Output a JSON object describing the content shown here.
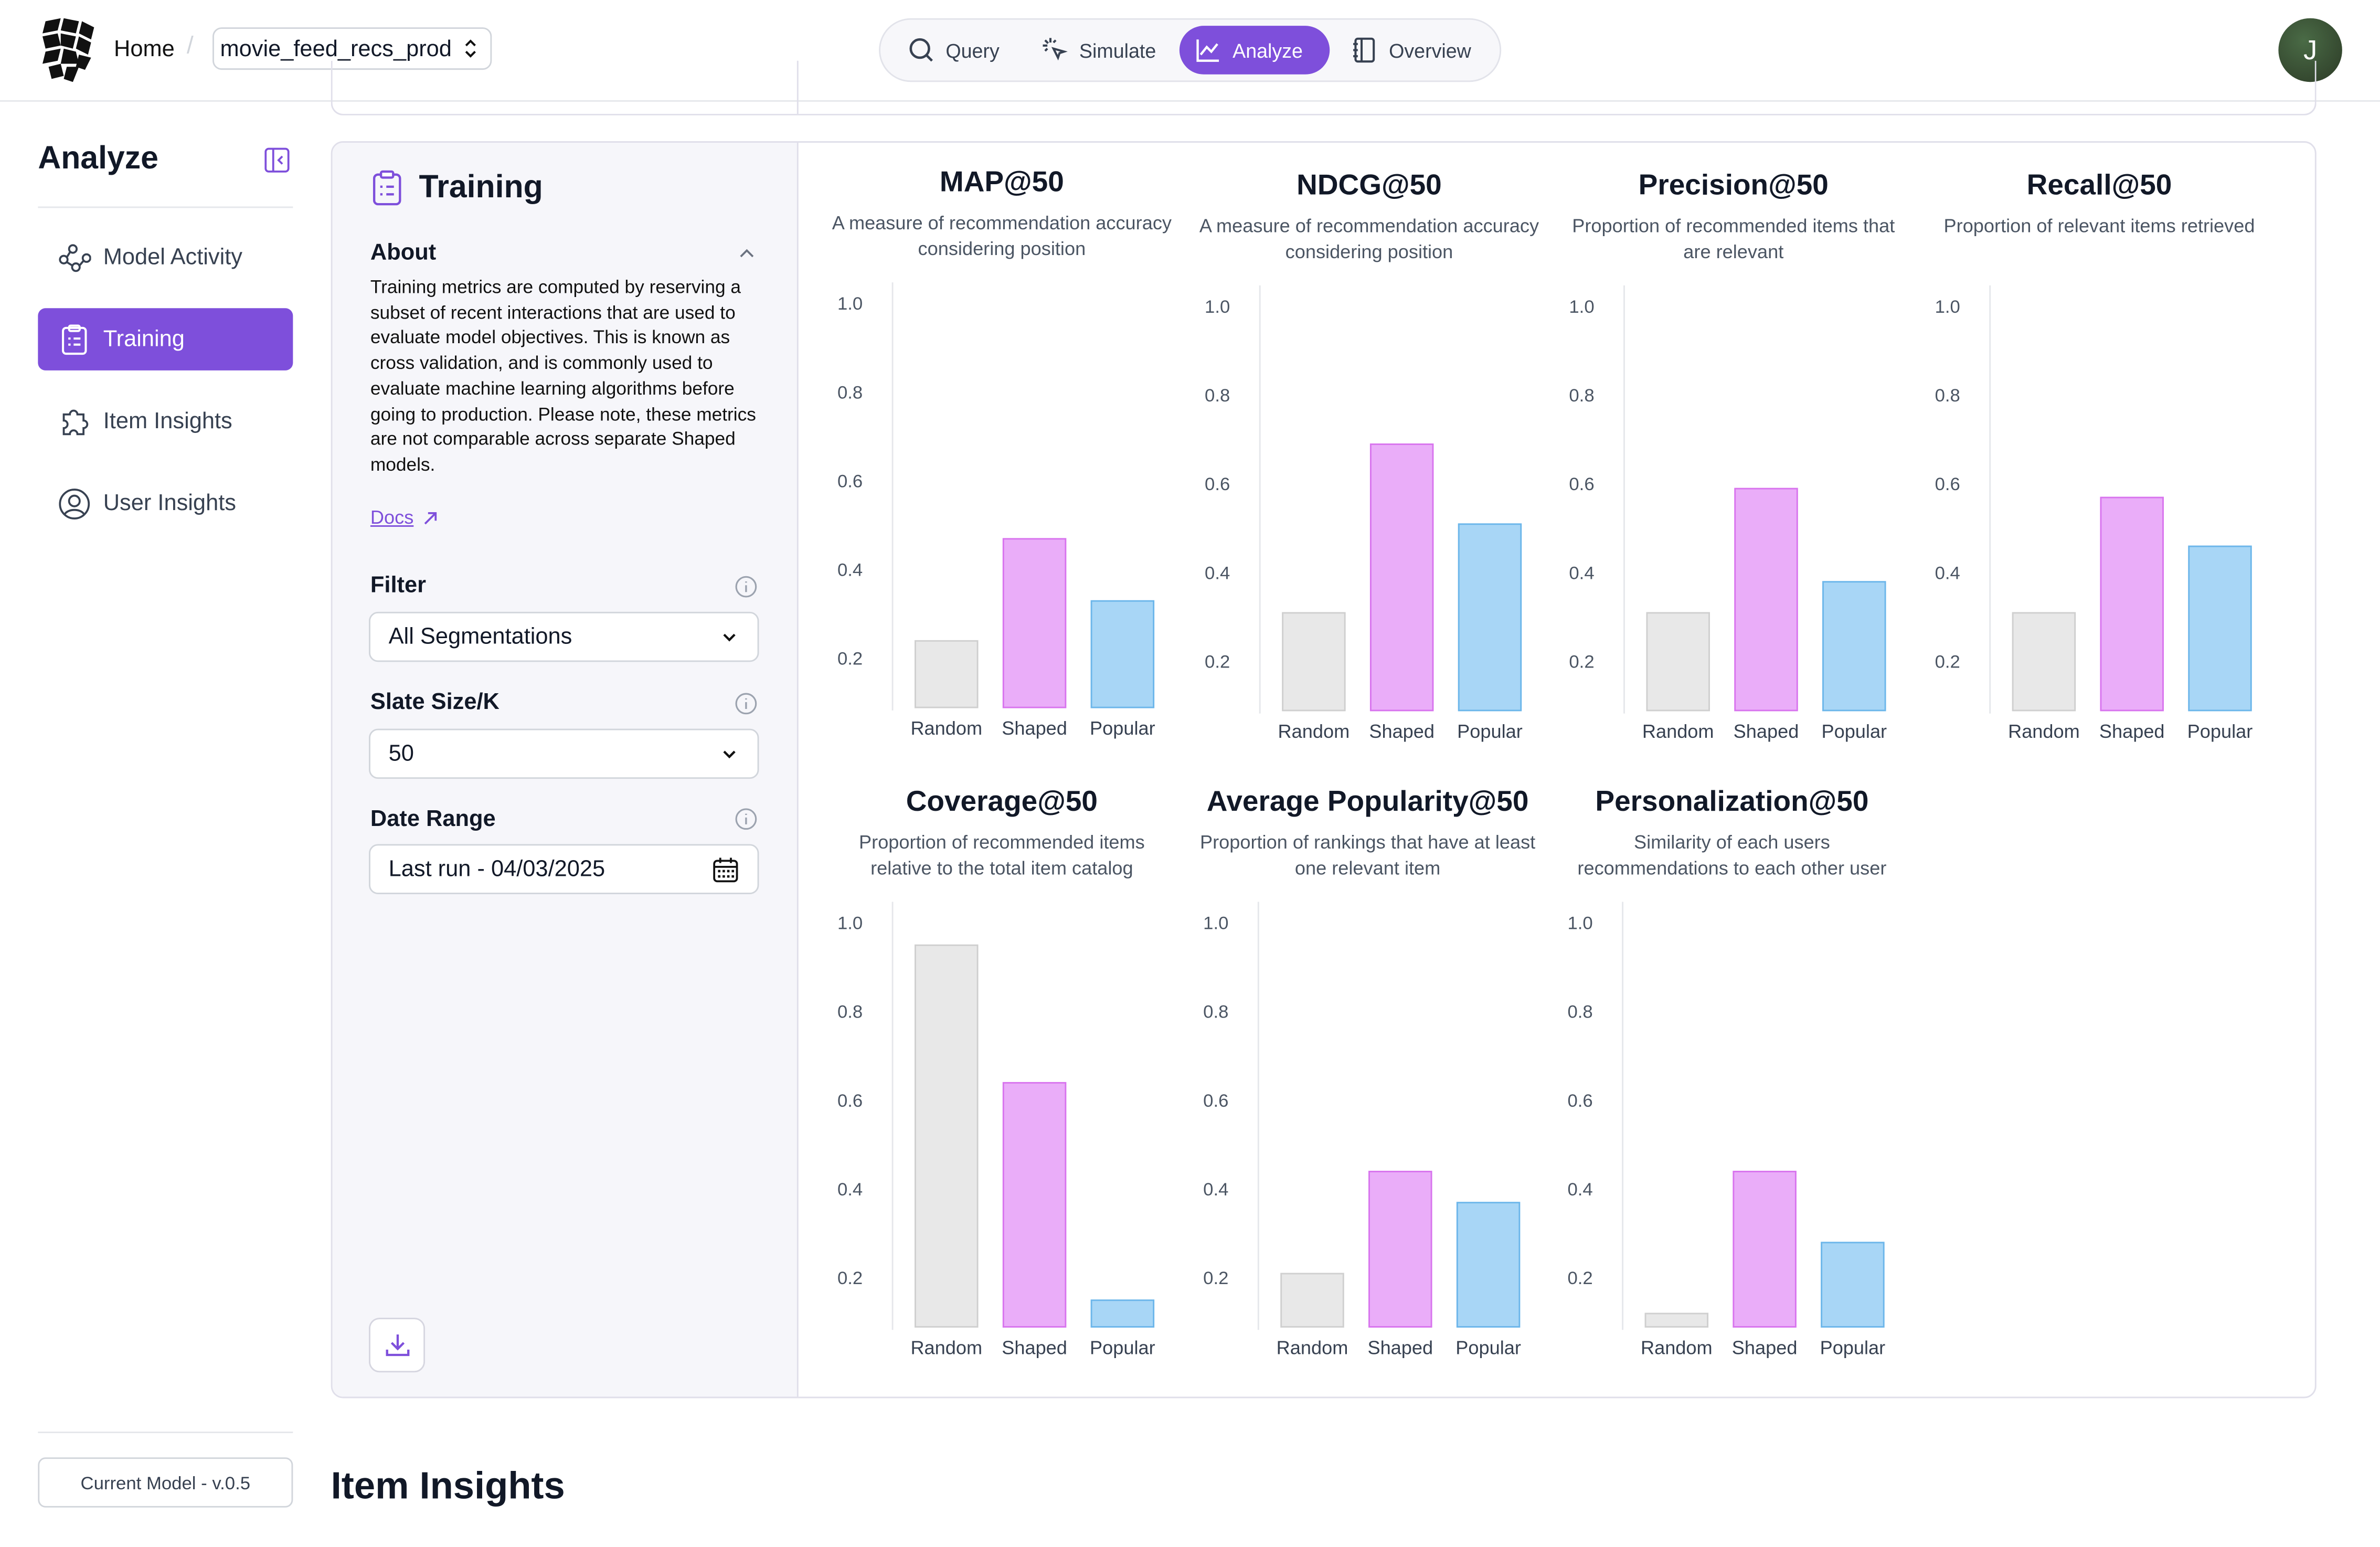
{
  "header": {
    "home": "Home",
    "project": "movie_feed_recs_prod",
    "nav": [
      {
        "label": "Query",
        "icon": "search-icon"
      },
      {
        "label": "Simulate",
        "icon": "cursor-click-icon"
      },
      {
        "label": "Analyze",
        "icon": "line-chart-icon",
        "active": true
      },
      {
        "label": "Overview",
        "icon": "notebook-icon"
      }
    ],
    "avatar_initial": "J"
  },
  "sidebar": {
    "title": "Analyze",
    "items": [
      {
        "label": "Model Activity",
        "icon": "activity-nodes-icon"
      },
      {
        "label": "Training",
        "icon": "clipboard-icon",
        "active": true
      },
      {
        "label": "Item Insights",
        "icon": "puzzle-icon"
      },
      {
        "label": "User Insights",
        "icon": "user-circle-icon"
      }
    ],
    "current_model": "Current Model - v.0.5"
  },
  "training": {
    "title": "Training",
    "about_heading": "About",
    "about_text": "Training metrics are computed by reserving a subset of recent interactions that are used to evaluate model objectives. This is known as cross validation, and is commonly used to evaluate machine learning algorithms before going to production. Please note, these metrics are not comparable across separate Shaped models.",
    "docs_link": "Docs",
    "filter_label": "Filter",
    "filter_value": "All Segmentations",
    "slate_label": "Slate Size/K",
    "slate_value": "50",
    "date_label": "Date Range",
    "date_value": "Last run - 04/03/2025"
  },
  "colors": {
    "accent": "#7e4fdb",
    "random": "#e5e5e5",
    "shaped": "#e8a4f8",
    "popular": "#9fd2f5"
  },
  "chart_data": [
    {
      "type": "bar",
      "title": "MAP@50",
      "subtitle": "A measure of recommendation accuracy considering position",
      "categories": [
        "Random",
        "Shaped",
        "Popular"
      ],
      "values": [
        0.24,
        0.47,
        0.33
      ],
      "yticks": [
        "1.0",
        "0.8",
        "0.6",
        "0.4",
        "0.2"
      ],
      "ylim": [
        0.09,
        1.0
      ]
    },
    {
      "type": "bar",
      "title": "NDCG@50",
      "subtitle": "A measure of recommendation accuracy considering position",
      "categories": [
        "Random",
        "Shaped",
        "Popular"
      ],
      "values": [
        0.31,
        0.69,
        0.51
      ],
      "yticks": [
        "1.0",
        "0.8",
        "0.6",
        "0.4",
        "0.2"
      ],
      "ylim": [
        0.09,
        1.0
      ]
    },
    {
      "type": "bar",
      "title": "Precision@50",
      "subtitle": "Proportion of recommended items that are relevant",
      "categories": [
        "Random",
        "Shaped",
        "Popular"
      ],
      "values": [
        0.31,
        0.59,
        0.38
      ],
      "yticks": [
        "1.0",
        "0.8",
        "0.6",
        "0.4",
        "0.2"
      ],
      "ylim": [
        0.09,
        1.0
      ]
    },
    {
      "type": "bar",
      "title": "Recall@50",
      "subtitle": "Proportion of relevant items retrieved",
      "categories": [
        "Random",
        "Shaped",
        "Popular"
      ],
      "values": [
        0.31,
        0.57,
        0.46
      ],
      "yticks": [
        "1.0",
        "0.8",
        "0.6",
        "0.4",
        "0.2"
      ],
      "ylim": [
        0.09,
        1.0
      ]
    },
    {
      "type": "bar",
      "title": "Coverage@50",
      "subtitle": "Proportion of recommended items relative to the total item catalog",
      "categories": [
        "Random",
        "Shaped",
        "Popular"
      ],
      "values": [
        0.95,
        0.64,
        0.15
      ],
      "yticks": [
        "1.0",
        "0.8",
        "0.6",
        "0.4",
        "0.2"
      ],
      "ylim": [
        0.09,
        1.0
      ]
    },
    {
      "type": "bar",
      "title": "Average Popularity@50",
      "subtitle": "Proportion of rankings that have at least one relevant item",
      "categories": [
        "Random",
        "Shaped",
        "Popular"
      ],
      "values": [
        0.21,
        0.44,
        0.37
      ],
      "yticks": [
        "1.0",
        "0.8",
        "0.6",
        "0.4",
        "0.2"
      ],
      "ylim": [
        0.09,
        1.0
      ]
    },
    {
      "type": "bar",
      "title": "Personalization@50",
      "subtitle": "Similarity of each users recommendations to each other user",
      "categories": [
        "Random",
        "Shaped",
        "Popular"
      ],
      "values": [
        0.12,
        0.44,
        0.28
      ],
      "yticks": [
        "1.0",
        "0.8",
        "0.6",
        "0.4",
        "0.2"
      ],
      "ylim": [
        0.09,
        1.0
      ]
    }
  ],
  "next_section_title": "Item Insights"
}
